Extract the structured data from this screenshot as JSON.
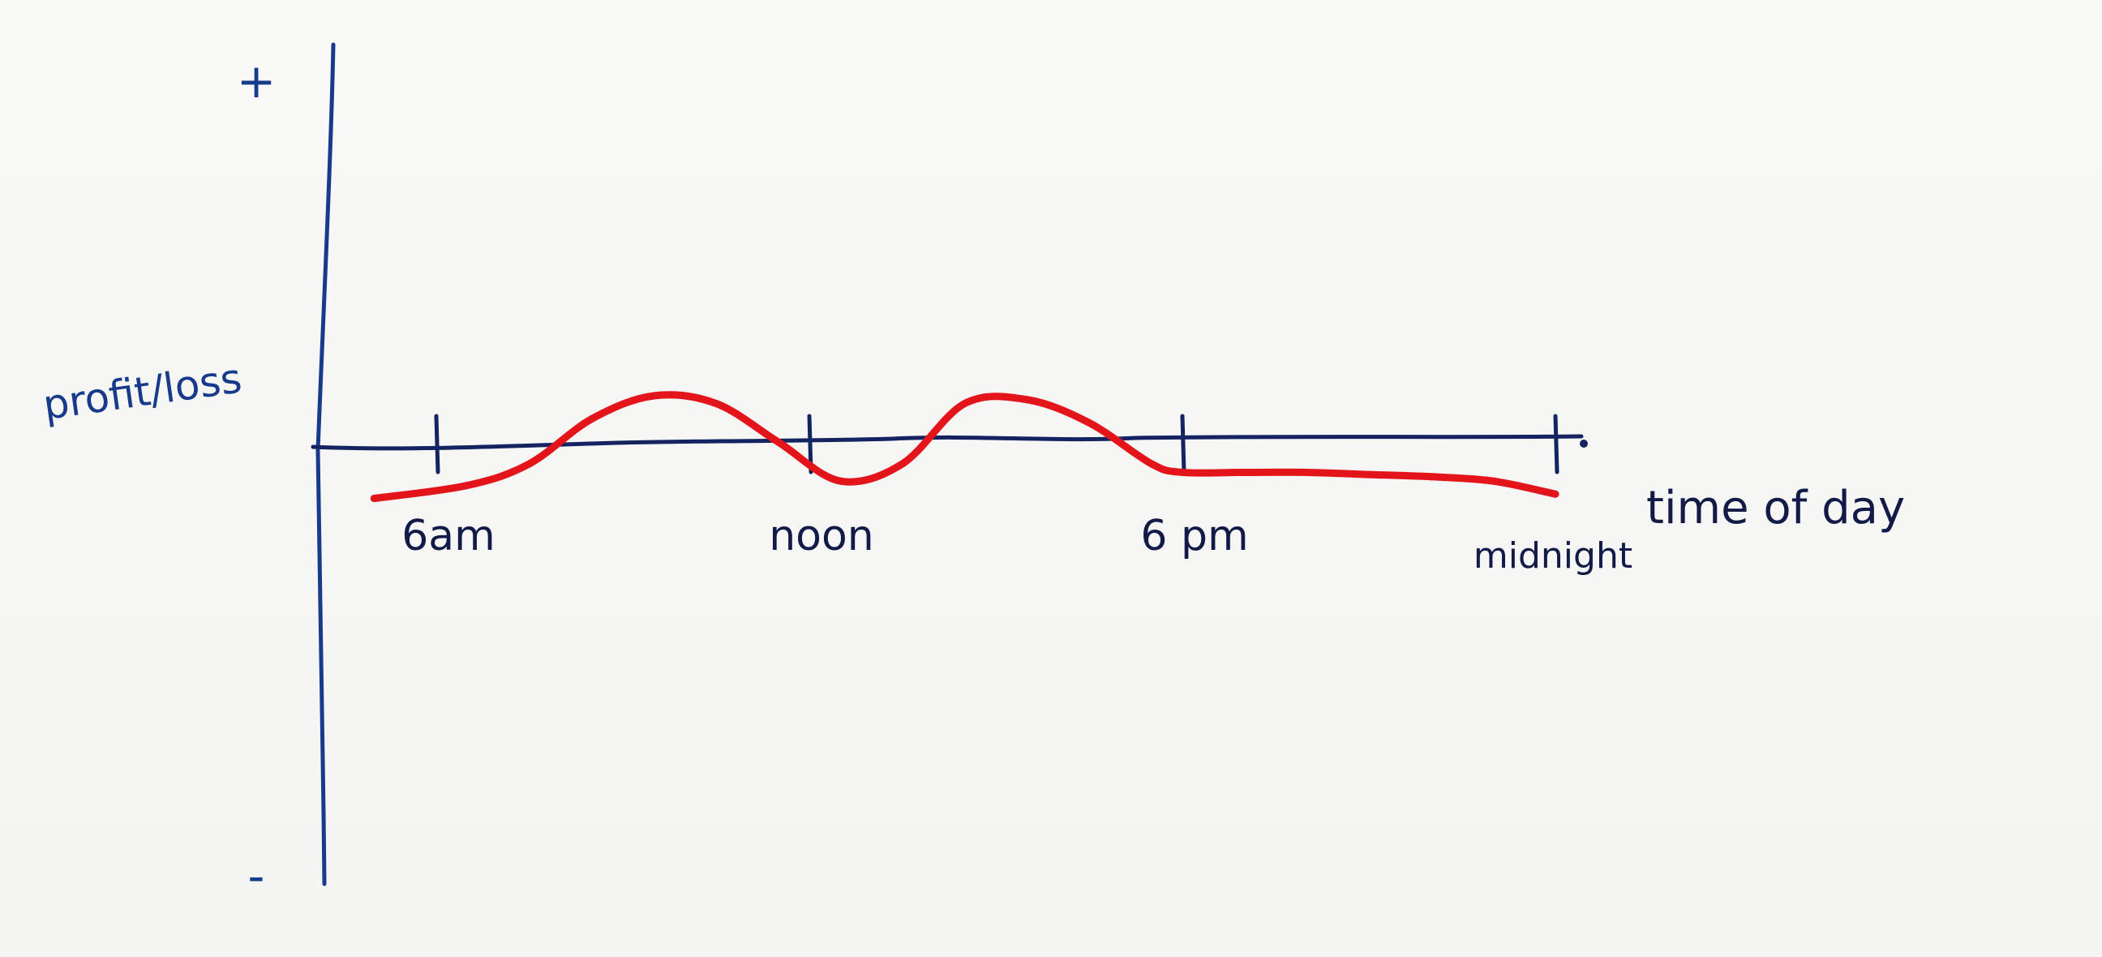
{
  "chart_data": {
    "type": "line",
    "title": "",
    "xlabel": "time of day",
    "ylabel": "profit/loss",
    "y_extremes": {
      "top": "+",
      "bottom": "-"
    },
    "ylim": [
      -1,
      1
    ],
    "categories": [
      "6am",
      "noon",
      "6 pm",
      "midnight"
    ],
    "grid": false,
    "legend": null,
    "colors": {
      "axes": "#142461",
      "line": "#e3151b",
      "text": "#121a47"
    },
    "series": [
      {
        "color": "#e3151b",
        "x": [
          5,
          6.5,
          7.5,
          8.5,
          9.5,
          10.5,
          11.5,
          12.5,
          13.5,
          14.5,
          15.5,
          16.5,
          17.5,
          18,
          19,
          20,
          21,
          22,
          23,
          24
        ],
        "y": [
          -0.13,
          -0.1,
          -0.05,
          0.06,
          0.12,
          0.1,
          0.0,
          -0.09,
          -0.05,
          0.1,
          0.11,
          0.05,
          -0.05,
          -0.07,
          -0.07,
          -0.07,
          -0.075,
          -0.08,
          -0.09,
          -0.12
        ]
      }
    ]
  }
}
